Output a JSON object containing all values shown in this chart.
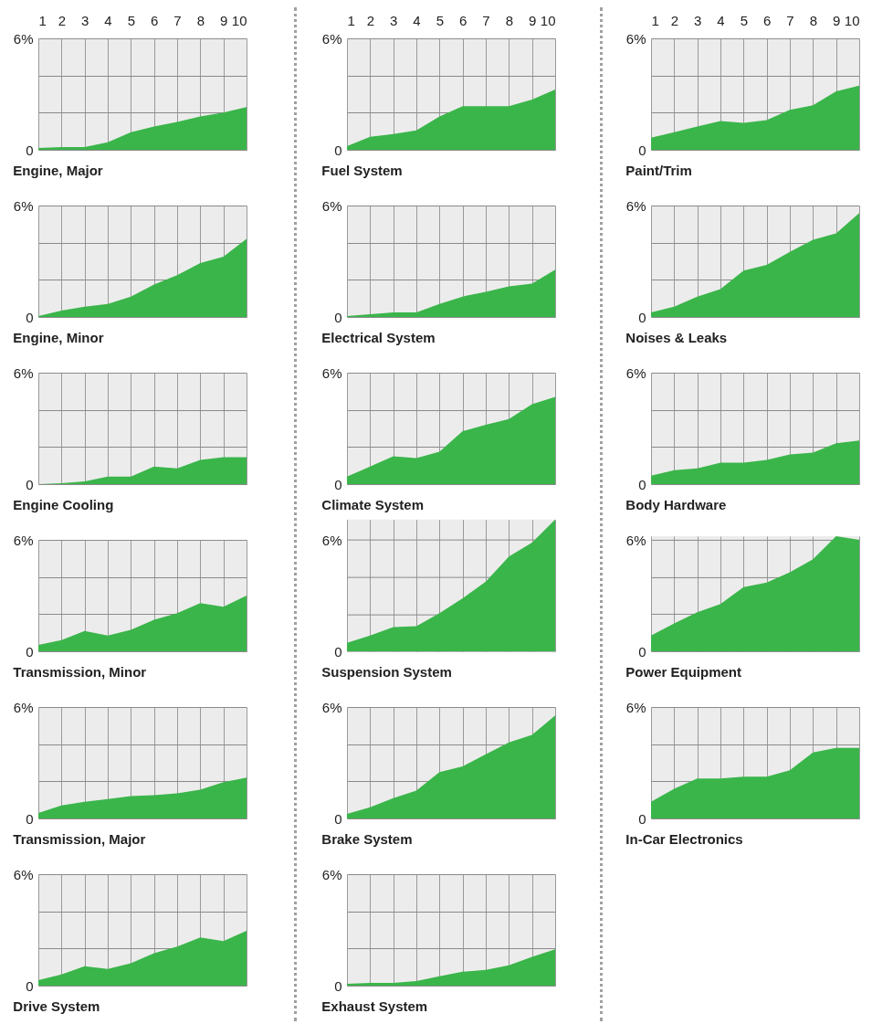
{
  "chart_data": [
    {
      "type": "area",
      "title": "Engine, Major",
      "x": [
        1,
        2,
        3,
        4,
        5,
        6,
        7,
        8,
        9,
        10
      ],
      "values": [
        0.1,
        0.15,
        0.15,
        0.4,
        0.95,
        1.25,
        1.5,
        1.8,
        2.0,
        2.3
      ],
      "color": "#3ab54a",
      "xlim": [
        1,
        10
      ],
      "xticks": [
        1,
        2,
        3,
        4,
        5,
        6,
        7,
        8,
        9,
        10
      ],
      "ylim": [
        0,
        6
      ],
      "yticks": [
        {
          "value": 0,
          "label": "0"
        },
        {
          "value": 2,
          "label": null
        },
        {
          "value": 4,
          "label": null
        },
        {
          "value": 6,
          "label": "6%"
        }
      ],
      "grid": true
    },
    {
      "type": "area",
      "title": "Engine, Minor",
      "x": [
        1,
        2,
        3,
        4,
        5,
        6,
        7,
        8,
        9,
        10
      ],
      "values": [
        0.05,
        0.35,
        0.55,
        0.7,
        1.1,
        1.75,
        2.25,
        2.9,
        3.25,
        4.2
      ],
      "color": "#3ab54a",
      "xlim": [
        1,
        10
      ],
      "xticks": [
        1,
        2,
        3,
        4,
        5,
        6,
        7,
        8,
        9,
        10
      ],
      "ylim": [
        0,
        6
      ],
      "yticks": [
        {
          "value": 0,
          "label": "0"
        },
        {
          "value": 2,
          "label": null
        },
        {
          "value": 4,
          "label": null
        },
        {
          "value": 6,
          "label": "6%"
        }
      ],
      "grid": true,
      "tick_labels": "y"
    },
    {
      "type": "area",
      "title": "Engine Cooling",
      "x": [
        1,
        2,
        3,
        4,
        5,
        6,
        7,
        8,
        9,
        10
      ],
      "values": [
        0,
        0.05,
        0.15,
        0.4,
        0.4,
        0.95,
        0.85,
        1.3,
        1.45,
        1.45
      ],
      "color": "#3ab54a",
      "xlim": [
        1,
        10
      ],
      "xticks": [
        1,
        2,
        3,
        4,
        5,
        6,
        7,
        8,
        9,
        10
      ],
      "ylim": [
        0,
        6
      ],
      "yticks": [
        {
          "value": 0,
          "label": "0"
        },
        {
          "value": 2,
          "label": null
        },
        {
          "value": 4,
          "label": null
        },
        {
          "value": 6,
          "label": "6%"
        }
      ],
      "grid": true,
      "tick_labels": "y"
    },
    {
      "type": "area",
      "title": "Transmission, Minor",
      "x": [
        1,
        2,
        3,
        4,
        5,
        6,
        7,
        8,
        9,
        10
      ],
      "values": [
        0.35,
        0.6,
        1.1,
        0.85,
        1.15,
        1.7,
        2.05,
        2.6,
        2.4,
        3.0
      ],
      "color": "#3ab54a",
      "xlim": [
        1,
        10
      ],
      "xticks": [
        1,
        2,
        3,
        4,
        5,
        6,
        7,
        8,
        9,
        10
      ],
      "ylim": [
        0,
        6
      ],
      "yticks": [
        {
          "value": 0,
          "label": "0"
        },
        {
          "value": 2,
          "label": null
        },
        {
          "value": 4,
          "label": null
        },
        {
          "value": 6,
          "label": "6%"
        }
      ],
      "grid": true,
      "tick_labels": "y"
    },
    {
      "type": "area",
      "title": "Transmission, Major",
      "x": [
        1,
        2,
        3,
        4,
        5,
        6,
        7,
        8,
        9,
        10
      ],
      "values": [
        0.3,
        0.7,
        0.9,
        1.05,
        1.2,
        1.25,
        1.35,
        1.55,
        1.95,
        2.2
      ],
      "color": "#3ab54a",
      "xlim": [
        1,
        10
      ],
      "xticks": [
        1,
        2,
        3,
        4,
        5,
        6,
        7,
        8,
        9,
        10
      ],
      "ylim": [
        0,
        6
      ],
      "yticks": [
        {
          "value": 0,
          "label": "0"
        },
        {
          "value": 2,
          "label": null
        },
        {
          "value": 4,
          "label": null
        },
        {
          "value": 6,
          "label": "6%"
        }
      ],
      "grid": true,
      "tick_labels": "y"
    },
    {
      "type": "area",
      "title": "Drive System",
      "x": [
        1,
        2,
        3,
        4,
        5,
        6,
        7,
        8,
        9,
        10
      ],
      "values": [
        0.3,
        0.6,
        1.05,
        0.9,
        1.2,
        1.75,
        2.1,
        2.6,
        2.4,
        2.95
      ],
      "color": "#3ab54a",
      "xlim": [
        1,
        10
      ],
      "xticks": [
        1,
        2,
        3,
        4,
        5,
        6,
        7,
        8,
        9,
        10
      ],
      "ylim": [
        0,
        6
      ],
      "yticks": [
        {
          "value": 0,
          "label": "0"
        },
        {
          "value": 2,
          "label": null
        },
        {
          "value": 4,
          "label": null
        },
        {
          "value": 6,
          "label": "6%"
        }
      ],
      "grid": true,
      "tick_labels": "y"
    },
    {
      "type": "area",
      "title": "Fuel System",
      "x": [
        1,
        2,
        3,
        4,
        5,
        6,
        7,
        8,
        9,
        10
      ],
      "values": [
        0.2,
        0.7,
        0.85,
        1.05,
        1.8,
        2.35,
        2.35,
        2.35,
        2.7,
        3.25
      ],
      "color": "#3ab54a",
      "xlim": [
        1,
        10
      ],
      "xticks": [
        1,
        2,
        3,
        4,
        5,
        6,
        7,
        8,
        9,
        10
      ],
      "ylim": [
        0,
        6
      ],
      "yticks": [
        {
          "value": 0,
          "label": "0"
        },
        {
          "value": 2,
          "label": null
        },
        {
          "value": 4,
          "label": null
        },
        {
          "value": 6,
          "label": "6%"
        }
      ],
      "grid": true
    },
    {
      "type": "area",
      "title": "Electrical System",
      "x": [
        1,
        2,
        3,
        4,
        5,
        6,
        7,
        8,
        9,
        10
      ],
      "values": [
        0.05,
        0.15,
        0.25,
        0.25,
        0.7,
        1.1,
        1.35,
        1.65,
        1.8,
        2.55
      ],
      "color": "#3ab54a",
      "xlim": [
        1,
        10
      ],
      "xticks": [
        1,
        2,
        3,
        4,
        5,
        6,
        7,
        8,
        9,
        10
      ],
      "ylim": [
        0,
        6
      ],
      "yticks": [
        {
          "value": 0,
          "label": "0"
        },
        {
          "value": 2,
          "label": null
        },
        {
          "value": 4,
          "label": null
        },
        {
          "value": 6,
          "label": "6%"
        }
      ],
      "grid": true,
      "tick_labels": "y"
    },
    {
      "type": "area",
      "title": "Climate System",
      "x": [
        1,
        2,
        3,
        4,
        5,
        6,
        7,
        8,
        9,
        10
      ],
      "values": [
        0.4,
        0.95,
        1.5,
        1.4,
        1.75,
        2.85,
        3.2,
        3.5,
        4.3,
        4.7
      ],
      "color": "#3ab54a",
      "xlim": [
        1,
        10
      ],
      "xticks": [
        1,
        2,
        3,
        4,
        5,
        6,
        7,
        8,
        9,
        10
      ],
      "ylim": [
        0,
        6
      ],
      "yticks": [
        {
          "value": 0,
          "label": "0"
        },
        {
          "value": 2,
          "label": null
        },
        {
          "value": 4,
          "label": null
        },
        {
          "value": 6,
          "label": "6%"
        }
      ],
      "grid": true,
      "tick_labels": "y"
    },
    {
      "type": "area",
      "title": "Suspension System",
      "x": [
        1,
        2,
        3,
        4,
        5,
        6,
        7,
        8,
        9,
        10
      ],
      "values": [
        0.45,
        0.85,
        1.3,
        1.35,
        2.05,
        2.85,
        3.75,
        5.1,
        5.85,
        7.1
      ],
      "color": "#3ab54a",
      "xlim": [
        1,
        10
      ],
      "xticks": [
        1,
        2,
        3,
        4,
        5,
        6,
        7,
        8,
        9,
        10
      ],
      "ylim": [
        0,
        7.1
      ],
      "yticks": [
        {
          "value": 0,
          "label": "0"
        },
        {
          "value": 2,
          "label": null
        },
        {
          "value": 4,
          "label": null
        },
        {
          "value": 6,
          "label": "6%"
        }
      ],
      "grid": true,
      "tick_labels": "y"
    },
    {
      "type": "area",
      "title": "Brake System",
      "x": [
        1,
        2,
        3,
        4,
        5,
        6,
        7,
        8,
        9,
        10
      ],
      "values": [
        0.25,
        0.6,
        1.1,
        1.5,
        2.5,
        2.8,
        3.45,
        4.1,
        4.5,
        5.55
      ],
      "color": "#3ab54a",
      "xlim": [
        1,
        10
      ],
      "xticks": [
        1,
        2,
        3,
        4,
        5,
        6,
        7,
        8,
        9,
        10
      ],
      "ylim": [
        0,
        6
      ],
      "yticks": [
        {
          "value": 0,
          "label": "0"
        },
        {
          "value": 2,
          "label": null
        },
        {
          "value": 4,
          "label": null
        },
        {
          "value": 6,
          "label": "6%"
        }
      ],
      "grid": true,
      "tick_labels": "y"
    },
    {
      "type": "area",
      "title": "Exhaust System",
      "x": [
        1,
        2,
        3,
        4,
        5,
        6,
        7,
        8,
        9,
        10
      ],
      "values": [
        0.1,
        0.15,
        0.15,
        0.25,
        0.5,
        0.75,
        0.85,
        1.1,
        1.55,
        1.95
      ],
      "color": "#3ab54a",
      "xlim": [
        1,
        10
      ],
      "xticks": [
        1,
        2,
        3,
        4,
        5,
        6,
        7,
        8,
        9,
        10
      ],
      "ylim": [
        0,
        6
      ],
      "yticks": [
        {
          "value": 0,
          "label": "0"
        },
        {
          "value": 2,
          "label": null
        },
        {
          "value": 4,
          "label": null
        },
        {
          "value": 6,
          "label": "6%"
        }
      ],
      "grid": true,
      "tick_labels": "y"
    },
    {
      "type": "area",
      "title": "Paint/Trim",
      "x": [
        1,
        2,
        3,
        4,
        5,
        6,
        7,
        8,
        9,
        10
      ],
      "values": [
        0.65,
        0.95,
        1.25,
        1.55,
        1.45,
        1.6,
        2.15,
        2.4,
        3.15,
        3.45
      ],
      "color": "#3ab54a",
      "xlim": [
        1,
        10
      ],
      "xticks": [
        1,
        2,
        3,
        4,
        5,
        6,
        7,
        8,
        9,
        10
      ],
      "ylim": [
        0,
        6
      ],
      "yticks": [
        {
          "value": 0,
          "label": "0"
        },
        {
          "value": 2,
          "label": null
        },
        {
          "value": 4,
          "label": null
        },
        {
          "value": 6,
          "label": "6%"
        }
      ],
      "grid": true
    },
    {
      "type": "area",
      "title": "Noises & Leaks",
      "x": [
        1,
        2,
        3,
        4,
        5,
        6,
        7,
        8,
        9,
        10
      ],
      "values": [
        0.25,
        0.55,
        1.1,
        1.5,
        2.5,
        2.8,
        3.5,
        4.15,
        4.5,
        5.6
      ],
      "color": "#3ab54a",
      "xlim": [
        1,
        10
      ],
      "xticks": [
        1,
        2,
        3,
        4,
        5,
        6,
        7,
        8,
        9,
        10
      ],
      "ylim": [
        0,
        6
      ],
      "yticks": [
        {
          "value": 0,
          "label": "0"
        },
        {
          "value": 2,
          "label": null
        },
        {
          "value": 4,
          "label": null
        },
        {
          "value": 6,
          "label": "6%"
        }
      ],
      "grid": true,
      "tick_labels": "y"
    },
    {
      "type": "area",
      "title": "Body Hardware",
      "x": [
        1,
        2,
        3,
        4,
        5,
        6,
        7,
        8,
        9,
        10
      ],
      "values": [
        0.45,
        0.75,
        0.85,
        1.15,
        1.15,
        1.3,
        1.6,
        1.7,
        2.2,
        2.35
      ],
      "color": "#3ab54a",
      "xlim": [
        1,
        10
      ],
      "xticks": [
        1,
        2,
        3,
        4,
        5,
        6,
        7,
        8,
        9,
        10
      ],
      "ylim": [
        0,
        6
      ],
      "yticks": [
        {
          "value": 0,
          "label": "0"
        },
        {
          "value": 2,
          "label": null
        },
        {
          "value": 4,
          "label": null
        },
        {
          "value": 6,
          "label": "6%"
        }
      ],
      "grid": true,
      "tick_labels": "y"
    },
    {
      "type": "area",
      "title": "Power Equipment",
      "x": [
        1,
        2,
        3,
        4,
        5,
        6,
        7,
        8,
        9,
        10
      ],
      "values": [
        0.85,
        1.5,
        2.1,
        2.55,
        3.45,
        3.7,
        4.25,
        4.95,
        6.2,
        6.0
      ],
      "color": "#3ab54a",
      "xlim": [
        1,
        10
      ],
      "xticks": [
        1,
        2,
        3,
        4,
        5,
        6,
        7,
        8,
        9,
        10
      ],
      "ylim": [
        0,
        6.2
      ],
      "yticks": [
        {
          "value": 0,
          "label": "0"
        },
        {
          "value": 2,
          "label": null
        },
        {
          "value": 4,
          "label": null
        },
        {
          "value": 6,
          "label": "6%"
        }
      ],
      "grid": true,
      "tick_labels": "y"
    },
    {
      "type": "area",
      "title": "In-Car Electronics",
      "x": [
        1,
        2,
        3,
        4,
        5,
        6,
        7,
        8,
        9,
        10
      ],
      "values": [
        0.9,
        1.6,
        2.15,
        2.15,
        2.25,
        2.25,
        2.6,
        3.55,
        3.8,
        3.8
      ],
      "color": "#3ab54a",
      "xlim": [
        1,
        10
      ],
      "xticks": [
        1,
        2,
        3,
        4,
        5,
        6,
        7,
        8,
        9,
        10
      ],
      "ylim": [
        0,
        6
      ],
      "yticks": [
        {
          "value": 0,
          "label": "0"
        },
        {
          "value": 2,
          "label": null
        },
        {
          "value": 4,
          "label": null
        },
        {
          "value": 6,
          "label": "6%"
        }
      ],
      "grid": true,
      "tick_labels": "y"
    }
  ]
}
